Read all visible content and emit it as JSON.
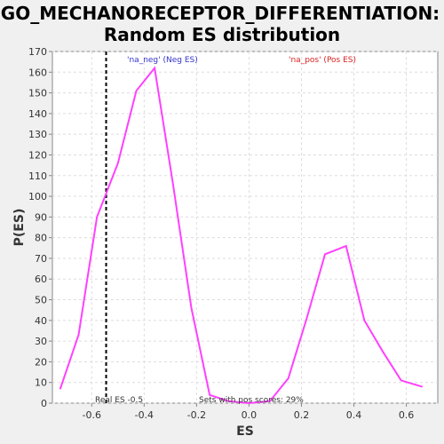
{
  "chart_data": {
    "type": "line",
    "title_line1": "GO_MECHANORECEPTOR_DIFFERENTIATION:",
    "title_line2": "Random ES distribution",
    "xlabel": "ES",
    "ylabel": "P(ES)",
    "xlim": [
      -0.75,
      0.72
    ],
    "ylim": [
      0,
      170
    ],
    "x_ticks": [
      -0.6,
      -0.4,
      -0.2,
      0.0,
      0.2,
      0.4,
      0.6
    ],
    "x_tick_labels": [
      "-0.6",
      "-0.4",
      "-0.2",
      "0.0",
      "0.2",
      "0.4",
      "0.6"
    ],
    "y_ticks": [
      0,
      10,
      20,
      30,
      40,
      50,
      60,
      70,
      80,
      90,
      100,
      110,
      120,
      130,
      140,
      150,
      160,
      170
    ],
    "y_tick_labels": [
      "0",
      "10",
      "20",
      "30",
      "40",
      "50",
      "60",
      "70",
      "80",
      "90",
      "100",
      "110",
      "120",
      "130",
      "140",
      "150",
      "160",
      "170"
    ],
    "grid": true,
    "series": [
      {
        "color": "#ff40ff",
        "x": [
          -0.72,
          -0.65,
          -0.58,
          -0.5,
          -0.43,
          -0.36,
          -0.29,
          -0.22,
          -0.15,
          -0.08,
          0.0,
          0.08,
          0.15,
          0.22,
          0.29,
          0.37,
          0.44,
          0.51,
          0.58,
          0.66
        ],
        "y": [
          7,
          33,
          90,
          116,
          151,
          162,
          106,
          46,
          4,
          1,
          0,
          1,
          12,
          41,
          72,
          76,
          40,
          25,
          11,
          8
        ]
      }
    ],
    "real_es_line": {
      "x": -0.545,
      "color": "#000000",
      "style": "dashed"
    },
    "annotations": {
      "neg_label": "'na_neg' (Neg ES)",
      "neg_color": "#3333cc",
      "pos_label": "'na_pos' (Pos ES)",
      "pos_color": "#dd2222",
      "real_es": "Real ES -0.5",
      "pos_scores": "Sets with pos scores: 29%"
    }
  }
}
